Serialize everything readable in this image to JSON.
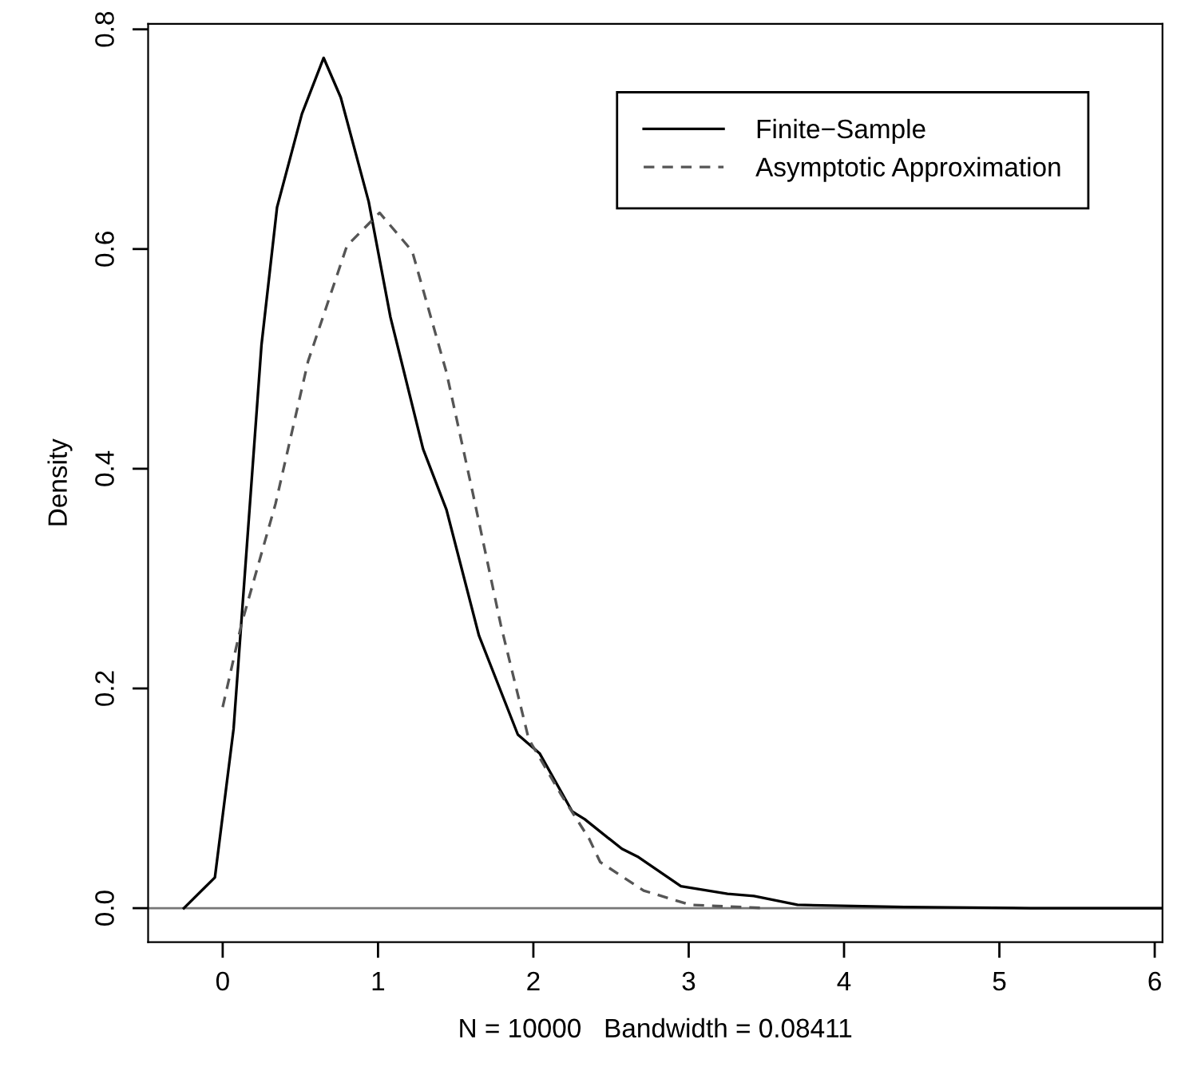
{
  "chart_data": {
    "type": "line",
    "xlabel": "N = 10000   Bandwidth = 0.08411",
    "ylabel": "Density",
    "xlim": [
      -0.48,
      6.05
    ],
    "ylim": [
      -0.031,
      0.805
    ],
    "xticks": [
      0,
      1,
      2,
      3,
      4,
      5,
      6
    ],
    "yticks": [
      {
        "value": 0,
        "label": "0.0"
      },
      0.2,
      0.4,
      0.6,
      0.8
    ],
    "grid": false,
    "legend": "top right",
    "marker": "none",
    "ref_lines": [
      {
        "axis": "y",
        "value": 0,
        "color": "#777777"
      }
    ],
    "series": [
      {
        "name": "Finite−Sample",
        "color": "#000000",
        "line_style": "solid",
        "x": [
          -0.25,
          -0.05,
          0.07,
          0.16,
          0.25,
          0.35,
          0.51,
          0.65,
          0.76,
          0.94,
          1.08,
          1.29,
          1.44,
          1.65,
          1.9,
          2.04,
          2.25,
          2.33,
          2.57,
          2.67,
          2.95,
          3.25,
          3.42,
          3.7,
          4.39,
          5.2,
          6.05
        ],
        "values": [
          0,
          0.028,
          0.163,
          0.338,
          0.513,
          0.638,
          0.723,
          0.774,
          0.738,
          0.643,
          0.538,
          0.418,
          0.363,
          0.248,
          0.158,
          0.141,
          0.088,
          0.081,
          0.054,
          0.047,
          0.02,
          0.013,
          0.011,
          0.003,
          0.001,
          0,
          0
        ]
      },
      {
        "name": "Asymptotic Approximation",
        "color": "#555555",
        "line_style": "dashed",
        "x": [
          0,
          0.12,
          0.34,
          0.55,
          0.8,
          1.01,
          1.22,
          1.44,
          1.61,
          1.79,
          1.97,
          2.18,
          2.36,
          2.43,
          2.71,
          3.01,
          3.5
        ],
        "values": [
          0.183,
          0.258,
          0.368,
          0.498,
          0.603,
          0.633,
          0.598,
          0.488,
          0.378,
          0.258,
          0.154,
          0.103,
          0.063,
          0.042,
          0.016,
          0.003,
          0
        ]
      }
    ]
  }
}
